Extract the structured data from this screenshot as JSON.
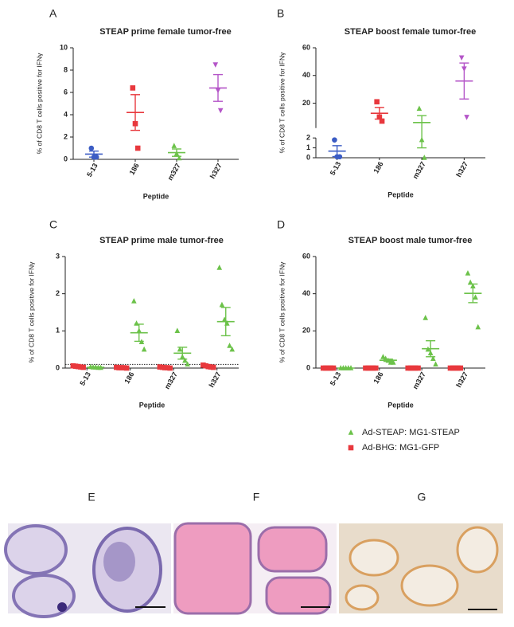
{
  "chart_data": [
    {
      "panel": "A",
      "type": "dot",
      "title": "STEAP prime female tumor-free",
      "ylabel": "% of CD8 T cells positive for IFNγ",
      "xlabel": "Peptide",
      "categories": [
        "5-13",
        "186",
        "m327",
        "h327"
      ],
      "ylim": [
        0,
        10
      ],
      "yticks": [
        0,
        2,
        4,
        6,
        8,
        10
      ],
      "series": [
        {
          "color": [
            "#3b5cc4",
            "#e8383d",
            "#6cc24a",
            "#b455c8"
          ],
          "marker": [
            "circle",
            "square",
            "triangle",
            "triangle-down"
          ],
          "points": [
            [
              1.0,
              0.2,
              0.2
            ],
            [
              6.4,
              3.2,
              1.0
            ],
            [
              1.2,
              0.5,
              0.1
            ],
            [
              8.5,
              6.2,
              4.4
            ]
          ],
          "mean": [
            0.47,
            4.2,
            0.6,
            6.4
          ],
          "sem": [
            0.27,
            1.6,
            0.33,
            1.2
          ]
        }
      ]
    },
    {
      "panel": "B",
      "type": "dot",
      "title": "STEAP boost female tumor-free",
      "ylabel": "% of CD8 T cells positive for IFNγ",
      "xlabel": "Peptide",
      "categories": [
        "5-13",
        "186",
        "m327",
        "h327"
      ],
      "y_segments": [
        {
          "lim": [
            0,
            2
          ],
          "ticks": [
            0,
            1,
            2
          ]
        },
        {
          "lim": [
            2,
            60
          ],
          "ticks": [
            20,
            40,
            60
          ]
        }
      ],
      "reference_line": 0,
      "series": [
        {
          "color": [
            "#3b5cc4",
            "#e8383d",
            "#6cc24a",
            "#b455c8"
          ],
          "marker": [
            "circle",
            "square",
            "triangle",
            "triangle-down"
          ],
          "points": [
            [
              1.8,
              0.1,
              0.1
            ],
            [
              21,
              10,
              7
            ],
            [
              16,
              1.8,
              0
            ],
            [
              53,
              45,
              10
            ]
          ],
          "mean": [
            0.67,
            12.7,
            6,
            36
          ],
          "sem": [
            0.55,
            4.2,
            5,
            13
          ]
        }
      ]
    },
    {
      "panel": "C",
      "type": "dot",
      "title": "STEAP prime male tumor-free",
      "ylabel": "% of CD8 T cells positive for IFNγ",
      "xlabel": "Peptide",
      "categories": [
        "5-13",
        "186",
        "m327",
        "h327"
      ],
      "ylim": [
        0,
        3
      ],
      "yticks": [
        0,
        1,
        2,
        3
      ],
      "reference_line": 0.1,
      "series": [
        {
          "color": "#e8383d",
          "marker": "square",
          "points": [
            [
              0.06,
              0.05,
              0.04,
              0.03,
              0.02
            ],
            [
              0.02,
              0.01,
              0.01,
              0.01,
              0
            ],
            [
              0.03,
              0.02,
              0.01,
              0.01,
              0
            ],
            [
              0.08,
              0.06,
              0.04,
              0.03,
              0.02
            ]
          ]
        },
        {
          "color": "#6cc24a",
          "marker": "triangle",
          "points": [
            [
              0.03,
              0.02,
              0.02,
              0.01,
              0.01
            ],
            [
              1.8,
              1.2,
              1.0,
              0.7,
              0.5
            ],
            [
              1.0,
              0.5,
              0.3,
              0.2,
              0.1
            ],
            [
              2.7,
              1.7,
              1.3,
              1.2,
              0.6,
              0.5
            ]
          ],
          "mean": [
            0.02,
            0.95,
            0.4,
            1.25
          ],
          "sem": [
            0.01,
            0.23,
            0.16,
            0.38
          ]
        }
      ]
    },
    {
      "panel": "D",
      "type": "dot",
      "title": "STEAP boost male tumor-free",
      "ylabel": "% of CD8 T cells positive for IFNγ",
      "xlabel": "Peptide",
      "categories": [
        "5-13",
        "186",
        "m327",
        "h327"
      ],
      "ylim": [
        0,
        60
      ],
      "yticks": [
        0,
        20,
        40,
        60
      ],
      "series": [
        {
          "color": "#e8383d",
          "marker": "square",
          "points": [
            [
              0,
              0,
              0,
              0,
              0
            ],
            [
              0,
              0,
              0,
              0,
              0
            ],
            [
              0,
              0,
              0,
              0,
              0
            ],
            [
              0,
              0,
              0,
              0,
              0
            ]
          ]
        },
        {
          "color": "#6cc24a",
          "marker": "triangle",
          "points": [
            [
              0,
              0,
              0,
              0,
              0
            ],
            [
              6,
              5,
              4,
              3,
              3
            ],
            [
              27,
              10,
              8,
              5,
              2
            ],
            [
              51,
              46,
              44,
              38,
              22
            ]
          ],
          "mean": [
            0,
            4.2,
            10.4,
            40.2
          ],
          "sem": [
            0,
            0.6,
            4.3,
            5
          ]
        }
      ]
    }
  ],
  "legend": [
    {
      "name": "Ad-STEAP: MG1-STEAP",
      "color": "#6cc24a",
      "marker": "triangle"
    },
    {
      "name": "Ad-BHG: MG1-GFP",
      "color": "#e8383d",
      "marker": "square"
    }
  ],
  "images": [
    {
      "label": "E"
    },
    {
      "label": "F"
    },
    {
      "label": "G"
    }
  ]
}
